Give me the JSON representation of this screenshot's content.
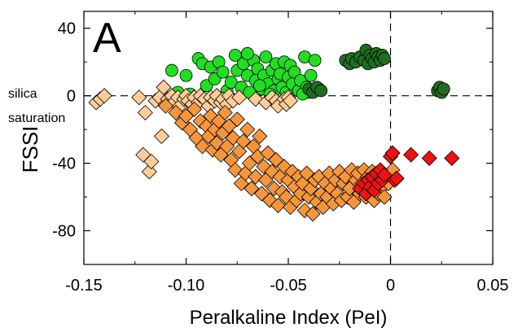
{
  "chart_data": {
    "type": "scatter",
    "panel_label": "A",
    "xlabel": "Peralkaline Index (PeI)",
    "ylabel": "FSSI",
    "xlim": [
      -0.15,
      0.05
    ],
    "ylim": [
      -100,
      50
    ],
    "x_ticks": [
      -0.15,
      -0.1,
      -0.05,
      0,
      0.05
    ],
    "x_tick_labels": [
      "-0.15",
      "-0.10",
      "-0.05",
      "0",
      "0.05"
    ],
    "y_ticks": [
      -80,
      -40,
      0,
      40
    ],
    "y_tick_labels": [
      "-80",
      "-40",
      "0",
      "40"
    ],
    "reference_lines": {
      "x": 0,
      "y": 0,
      "style": "dashed"
    },
    "annotation": [
      "silica",
      "saturation"
    ],
    "grid": false,
    "series": [
      {
        "marker": "circle",
        "color": "#22dd22",
        "points": [
          [
            -0.107,
            15
          ],
          [
            -0.1,
            12
          ],
          [
            -0.094,
            22
          ],
          [
            -0.092,
            19
          ],
          [
            -0.09,
            6
          ],
          [
            -0.088,
            17
          ],
          [
            -0.086,
            10
          ],
          [
            -0.084,
            20
          ],
          [
            -0.082,
            14
          ],
          [
            -0.08,
            3
          ],
          [
            -0.078,
            8
          ],
          [
            -0.076,
            24
          ],
          [
            -0.075,
            15
          ],
          [
            -0.073,
            5
          ],
          [
            -0.072,
            19
          ],
          [
            -0.07,
            12
          ],
          [
            -0.069,
            2
          ],
          [
            -0.067,
            21
          ],
          [
            -0.066,
            9
          ],
          [
            -0.065,
            16
          ],
          [
            -0.063,
            4
          ],
          [
            -0.062,
            12
          ],
          [
            -0.061,
            23
          ],
          [
            -0.06,
            7
          ],
          [
            -0.058,
            15
          ],
          [
            -0.057,
            3
          ],
          [
            -0.056,
            19
          ],
          [
            -0.055,
            10
          ],
          [
            -0.054,
            13
          ],
          [
            -0.053,
            5
          ],
          [
            -0.052,
            20
          ],
          [
            -0.051,
            2
          ],
          [
            -0.05,
            11
          ],
          [
            -0.049,
            18
          ],
          [
            -0.048,
            7
          ],
          [
            -0.047,
            14
          ],
          [
            -0.045,
            3
          ],
          [
            -0.044,
            9
          ],
          [
            -0.042,
            23
          ],
          [
            -0.041,
            5
          ],
          [
            -0.04,
            2
          ],
          [
            -0.039,
            12
          ],
          [
            -0.037,
            21
          ],
          [
            -0.035,
            4
          ],
          [
            -0.104,
            2
          ],
          [
            -0.098,
            1
          ],
          [
            -0.07,
            25
          ],
          [
            -0.064,
            6
          ],
          [
            -0.059,
            1
          ],
          [
            -0.043,
            1
          ]
        ]
      },
      {
        "marker": "circle",
        "color": "#1f6e1f",
        "points": [
          [
            -0.04,
            4
          ],
          [
            -0.038,
            2
          ],
          [
            -0.036,
            5
          ],
          [
            -0.034,
            3
          ],
          [
            -0.022,
            21
          ],
          [
            -0.02,
            19
          ],
          [
            -0.019,
            22
          ],
          [
            -0.017,
            20
          ],
          [
            -0.015,
            23
          ],
          [
            -0.013,
            21
          ],
          [
            -0.012,
            27
          ],
          [
            -0.011,
            19
          ],
          [
            -0.01,
            24
          ],
          [
            -0.009,
            22
          ],
          [
            -0.008,
            20
          ],
          [
            -0.007,
            25
          ],
          [
            -0.006,
            23
          ],
          [
            -0.005,
            21
          ],
          [
            -0.004,
            24
          ],
          [
            -0.003,
            22
          ],
          [
            0.023,
            3
          ],
          [
            0.024,
            5
          ],
          [
            0.025,
            2
          ],
          [
            0.026,
            4
          ]
        ]
      },
      {
        "marker": "diamond",
        "color": "#ffcc99",
        "points": [
          [
            -0.144,
            -4
          ],
          [
            -0.142,
            -2
          ],
          [
            -0.14,
            0
          ],
          [
            -0.123,
            -1
          ],
          [
            -0.121,
            -35
          ],
          [
            -0.12,
            -10
          ],
          [
            -0.118,
            -45
          ],
          [
            -0.117,
            -39
          ],
          [
            -0.115,
            -3
          ],
          [
            -0.113,
            -1
          ],
          [
            -0.112,
            -24
          ],
          [
            -0.111,
            5
          ],
          [
            -0.11,
            -5
          ],
          [
            -0.109,
            -2
          ],
          [
            -0.107,
            0
          ],
          [
            -0.106,
            -4
          ],
          [
            -0.104,
            -1
          ],
          [
            -0.103,
            -6
          ],
          [
            -0.101,
            -2
          ],
          [
            -0.1,
            0
          ],
          [
            -0.099,
            -3
          ],
          [
            -0.097,
            -5
          ],
          [
            -0.096,
            -1
          ],
          [
            -0.094,
            -4
          ],
          [
            -0.093,
            0
          ],
          [
            -0.091,
            -2
          ],
          [
            -0.089,
            -6
          ],
          [
            -0.088,
            -1
          ],
          [
            -0.086,
            -3
          ],
          [
            -0.085,
            0
          ],
          [
            -0.083,
            -4
          ],
          [
            -0.082,
            -2
          ],
          [
            -0.08,
            -5
          ],
          [
            -0.079,
            0
          ],
          [
            -0.077,
            -3
          ],
          [
            -0.074,
            -1
          ],
          [
            -0.066,
            -2
          ],
          [
            -0.061,
            -4
          ],
          [
            -0.058,
            -1
          ],
          [
            -0.056,
            -3
          ],
          [
            -0.055,
            -6
          ],
          [
            -0.052,
            -2
          ],
          [
            -0.051,
            -5
          ],
          [
            -0.05,
            -1
          ],
          [
            -0.049,
            -3
          ]
        ]
      },
      {
        "marker": "diamond",
        "color": "#f5963c",
        "points": [
          [
            -0.11,
            -6
          ],
          [
            -0.105,
            -10
          ],
          [
            -0.102,
            -16
          ],
          [
            -0.1,
            -12
          ],
          [
            -0.098,
            -20
          ],
          [
            -0.096,
            -8
          ],
          [
            -0.095,
            -25
          ],
          [
            -0.093,
            -15
          ],
          [
            -0.092,
            -30
          ],
          [
            -0.09,
            -18
          ],
          [
            -0.089,
            -24
          ],
          [
            -0.088,
            -12
          ],
          [
            -0.087,
            -32
          ],
          [
            -0.086,
            -20
          ],
          [
            -0.085,
            -28
          ],
          [
            -0.084,
            -15
          ],
          [
            -0.083,
            -35
          ],
          [
            -0.082,
            -22
          ],
          [
            -0.081,
            -10
          ],
          [
            -0.08,
            -30
          ],
          [
            -0.079,
            -18
          ],
          [
            -0.078,
            -38
          ],
          [
            -0.077,
            -25
          ],
          [
            -0.076,
            -44
          ],
          [
            -0.075,
            -14
          ],
          [
            -0.074,
            -33
          ],
          [
            -0.073,
            -52
          ],
          [
            -0.072,
            -27
          ],
          [
            -0.071,
            -46
          ],
          [
            -0.07,
            -20
          ],
          [
            -0.069,
            -40
          ],
          [
            -0.068,
            -55
          ],
          [
            -0.067,
            -30
          ],
          [
            -0.066,
            -48
          ],
          [
            -0.065,
            -36
          ],
          [
            -0.064,
            -24
          ],
          [
            -0.063,
            -58
          ],
          [
            -0.062,
            -42
          ],
          [
            -0.061,
            -50
          ],
          [
            -0.06,
            -34
          ],
          [
            -0.059,
            -62
          ],
          [
            -0.058,
            -45
          ],
          [
            -0.057,
            -55
          ],
          [
            -0.056,
            -38
          ],
          [
            -0.055,
            -65
          ],
          [
            -0.054,
            -48
          ],
          [
            -0.053,
            -57
          ],
          [
            -0.052,
            -42
          ],
          [
            -0.051,
            -60
          ],
          [
            -0.05,
            -50
          ],
          [
            -0.049,
            -66
          ],
          [
            -0.048,
            -45
          ],
          [
            -0.047,
            -54
          ],
          [
            -0.046,
            -62
          ],
          [
            -0.045,
            -48
          ],
          [
            -0.044,
            -58
          ],
          [
            -0.043,
            -52
          ],
          [
            -0.042,
            -68
          ],
          [
            -0.041,
            -46
          ],
          [
            -0.04,
            -60
          ],
          [
            -0.039,
            -55
          ],
          [
            -0.038,
            -70
          ],
          [
            -0.037,
            -50
          ],
          [
            -0.036,
            -63
          ],
          [
            -0.035,
            -48
          ],
          [
            -0.034,
            -58
          ],
          [
            -0.033,
            -66
          ],
          [
            -0.032,
            -52
          ],
          [
            -0.031,
            -60
          ],
          [
            -0.03,
            -46
          ],
          [
            -0.029,
            -55
          ],
          [
            -0.028,
            -64
          ],
          [
            -0.027,
            -50
          ],
          [
            -0.026,
            -58
          ],
          [
            -0.025,
            -45
          ],
          [
            -0.024,
            -62
          ],
          [
            -0.023,
            -52
          ],
          [
            -0.022,
            -48
          ],
          [
            -0.021,
            -60
          ],
          [
            -0.02,
            -55
          ],
          [
            -0.019,
            -44
          ],
          [
            -0.018,
            -63
          ],
          [
            -0.017,
            -50
          ],
          [
            -0.016,
            -46
          ],
          [
            -0.015,
            -58
          ],
          [
            -0.014,
            -52
          ],
          [
            -0.013,
            -44
          ],
          [
            -0.012,
            -60
          ],
          [
            -0.011,
            -48
          ],
          [
            -0.01,
            -55
          ],
          [
            -0.009,
            -45
          ],
          [
            -0.008,
            -62
          ],
          [
            -0.007,
            -50
          ],
          [
            -0.006,
            -58
          ],
          [
            -0.005,
            -46
          ],
          [
            -0.004,
            -54
          ],
          [
            -0.003,
            -60
          ],
          [
            -0.002,
            -48
          ],
          [
            -0.001,
            -52
          ],
          [
            0.001,
            -44
          ],
          [
            0.003,
            -49
          ]
        ]
      },
      {
        "marker": "diamond",
        "color": "#ee1111",
        "points": [
          [
            -0.015,
            -55
          ],
          [
            -0.013,
            -52
          ],
          [
            -0.012,
            -58
          ],
          [
            -0.011,
            -50
          ],
          [
            -0.01,
            -54
          ],
          [
            -0.009,
            -48
          ],
          [
            -0.008,
            -56
          ],
          [
            -0.007,
            -46
          ],
          [
            -0.006,
            -52
          ],
          [
            -0.005,
            -44
          ],
          [
            -0.004,
            -50
          ],
          [
            -0.003,
            -47
          ],
          [
            0.0,
            -36
          ],
          [
            0.001,
            -34
          ],
          [
            0.002,
            -50
          ],
          [
            0.003,
            -49
          ],
          [
            0.01,
            -35
          ],
          [
            0.019,
            -37
          ],
          [
            0.03,
            -37
          ]
        ]
      }
    ]
  }
}
